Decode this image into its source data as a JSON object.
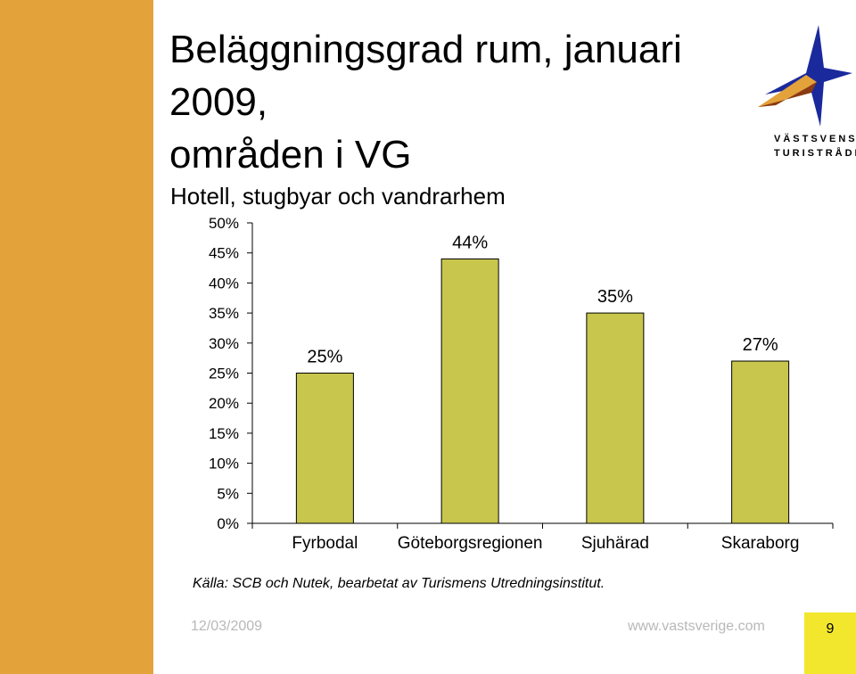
{
  "title": "Beläggningsgrad rum, januari 2009, områden i VG",
  "title_lines": [
    "Beläggningsgrad rum, januari",
    "2009,",
    "områden i VG"
  ],
  "subtitle": "Hotell, stugbyar och vandrarhem",
  "logo": {
    "line1": "VÄSTSVENSKA",
    "line2": "TURISTRÅDET"
  },
  "colors": {
    "band": "#e3a23a",
    "bar": "#c8c64c",
    "bar_border": "#000000",
    "page_box": "#f2e72c",
    "footer_text": "#b8b8b8"
  },
  "chart_data": {
    "type": "bar",
    "categories": [
      "Fyrbodal",
      "Göteborgsregionen",
      "Sjuhärad",
      "Skaraborg"
    ],
    "values": [
      25,
      44,
      35,
      27
    ],
    "data_labels": [
      "25%",
      "44%",
      "35%",
      "27%"
    ],
    "ylim": [
      0,
      50
    ],
    "yticks": [
      0,
      5,
      10,
      15,
      20,
      25,
      30,
      35,
      40,
      45,
      50
    ],
    "ytick_labels": [
      "0%",
      "5%",
      "10%",
      "15%",
      "20%",
      "25%",
      "30%",
      "35%",
      "40%",
      "45%",
      "50%"
    ],
    "grid": false,
    "title": "",
    "xlabel": "",
    "ylabel": ""
  },
  "source": "Källa: SCB och Nutek, bearbetat av Turismens Utredningsinstitut.",
  "footer": {
    "date": "12/03/2009",
    "url": "www.vastsverige.com",
    "page": "9"
  }
}
